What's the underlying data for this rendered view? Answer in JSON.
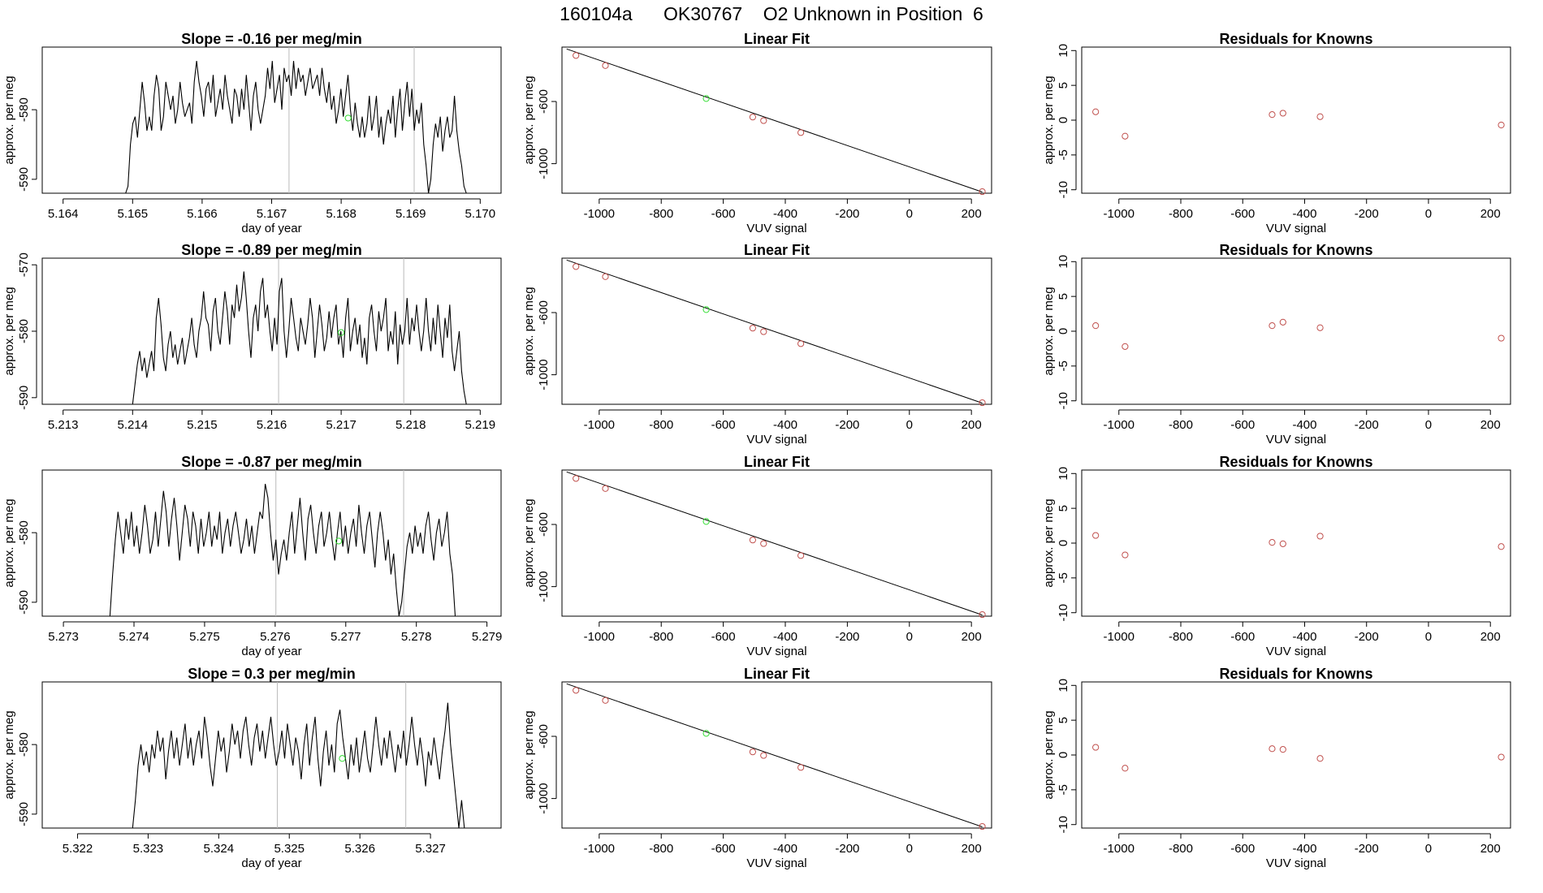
{
  "page": {
    "title": "160104a      OK30767    O2 Unknown in Position  6"
  },
  "colors": {
    "line": "#000000",
    "known_point": "#c0504d",
    "unknown_point": "#33dd33",
    "vline": "#bbbbbb"
  },
  "chart_data": [
    {
      "type": "line",
      "title": "Slope =  -0.16  per meg/min",
      "xlabel": "day of year",
      "ylabel": "approx. per meg",
      "xlim": [
        5.1637,
        5.1703
      ],
      "ylim": [
        -592,
        -571
      ],
      "xticks": [
        5.164,
        5.165,
        5.166,
        5.167,
        5.168,
        5.169,
        5.17
      ],
      "xtick_labels": [
        "5.164",
        "5.165",
        "5.166",
        "5.167",
        "5.168",
        "5.169",
        "5.170"
      ],
      "yticks": [
        -580,
        -590
      ],
      "ytick_labels": [
        "-580",
        "-590"
      ],
      "vlines": [
        5.16725,
        5.16905
      ],
      "x_start": 5.1649,
      "x_end": 5.1698,
      "unknown_point": {
        "x": 5.1681,
        "y": -581.2
      },
      "y": [
        -592,
        -591,
        -585,
        -582,
        -581,
        -584,
        -580,
        -576,
        -579,
        -583,
        -581,
        -583,
        -578,
        -575,
        -577,
        -583,
        -581,
        -576,
        -578,
        -580,
        -578,
        -582,
        -580,
        -576,
        -579,
        -581,
        -580,
        -579,
        -582,
        -576,
        -573,
        -576,
        -578,
        -581,
        -577,
        -576,
        -579,
        -575,
        -581,
        -579,
        -577,
        -580,
        -575,
        -578,
        -580,
        -582,
        -577,
        -578,
        -581,
        -577,
        -580,
        -575,
        -579,
        -583,
        -578,
        -576,
        -580,
        -582,
        -580,
        -578,
        -574,
        -577,
        -573,
        -579,
        -577,
        -575,
        -580,
        -574,
        -576,
        -575,
        -578,
        -573,
        -577,
        -574,
        -576,
        -575,
        -578,
        -576,
        -574,
        -577,
        -576,
        -575,
        -578,
        -574,
        -577,
        -579,
        -576,
        -580,
        -578,
        -582,
        -580,
        -577,
        -581,
        -578,
        -575,
        -580,
        -583,
        -579,
        -582,
        -584,
        -581,
        -584,
        -582,
        -578,
        -583,
        -581,
        -578,
        -584,
        -581,
        -585,
        -582,
        -580,
        -582,
        -578,
        -584,
        -580,
        -577,
        -583,
        -579,
        -576,
        -581,
        -577,
        -583,
        -580,
        -582,
        -579,
        -585,
        -588,
        -592,
        -590,
        -585,
        -582,
        -584,
        -581,
        -586,
        -583,
        -581,
        -584,
        -583,
        -578,
        -583,
        -586,
        -588,
        -591,
        -592
      ]
    },
    {
      "type": "scatter",
      "title": "Linear Fit",
      "xlabel": "VUV signal",
      "ylabel": "approx. per meg",
      "xlim": [
        -1120,
        265
      ],
      "ylim": [
        -1190,
        -250
      ],
      "xticks": [
        -1000,
        -800,
        -600,
        -400,
        -200,
        0,
        200
      ],
      "xtick_labels": [
        "-1000",
        "-800",
        "-600",
        "-400",
        "-200",
        "0",
        "200"
      ],
      "yticks": [
        -600,
        -1000
      ],
      "ytick_labels": [
        "-600",
        "-1000"
      ],
      "fit_line": {
        "x": [
          -1105,
          235
        ],
        "y": [
          -262,
          -1182
        ]
      },
      "known_points": {
        "x": [
          -1075,
          -980,
          -505,
          -470,
          -350,
          235
        ],
        "y": [
          -304,
          -369,
          -700,
          -723,
          -800,
          -1180
        ]
      },
      "unknown_point": {
        "x": -655,
        "y": -581
      }
    },
    {
      "type": "scatter",
      "title": "Residuals for Knowns",
      "xlabel": "VUV signal",
      "ylabel": "approx. per meg",
      "xlim": [
        -1120,
        265
      ],
      "ylim": [
        -10.5,
        10.5
      ],
      "xticks": [
        -1000,
        -800,
        -600,
        -400,
        -200,
        0,
        200
      ],
      "xtick_labels": [
        "-1000",
        "-800",
        "-600",
        "-400",
        "-200",
        "0",
        "200"
      ],
      "yticks": [
        10,
        5,
        0,
        -5,
        -10
      ],
      "ytick_labels": [
        "10",
        "5",
        "0",
        "-5",
        "-10"
      ],
      "points": {
        "x": [
          -1075,
          -980,
          -505,
          -470,
          -350,
          235
        ],
        "y": [
          1.2,
          -2.3,
          0.8,
          1.0,
          0.5,
          -0.7
        ]
      }
    },
    {
      "type": "line",
      "title": "Slope =  -0.89  per meg/min",
      "xlabel": "",
      "ylabel": "approx. per meg",
      "xlim": [
        5.2127,
        5.2193
      ],
      "ylim": [
        -591,
        -569
      ],
      "xticks": [
        5.213,
        5.214,
        5.215,
        5.216,
        5.217,
        5.218,
        5.219
      ],
      "xtick_labels": [
        "5.213",
        "5.214",
        "5.215",
        "5.216",
        "5.217",
        "5.218",
        "5.219"
      ],
      "yticks": [
        -570,
        -580,
        -590
      ],
      "ytick_labels": [
        "-570",
        "-580",
        "-590"
      ],
      "vlines": [
        5.2161,
        5.2179
      ],
      "x_start": 5.214,
      "x_end": 5.2188,
      "unknown_point": {
        "x": 5.217,
        "y": -580.2
      },
      "y": [
        -591,
        -588,
        -585,
        -583,
        -586,
        -584,
        -587,
        -585,
        -583,
        -586,
        -578,
        -575,
        -579,
        -584,
        -586,
        -582,
        -580,
        -584,
        -582,
        -585,
        -583,
        -581,
        -585,
        -583,
        -581,
        -578,
        -582,
        -584,
        -580,
        -578,
        -574,
        -578,
        -579,
        -583,
        -577,
        -575,
        -580,
        -582,
        -578,
        -574,
        -577,
        -582,
        -576,
        -578,
        -573,
        -577,
        -575,
        -571,
        -575,
        -580,
        -584,
        -578,
        -576,
        -580,
        -574,
        -572,
        -578,
        -576,
        -580,
        -583,
        -578,
        -582,
        -574,
        -572,
        -580,
        -584,
        -580,
        -575,
        -578,
        -581,
        -583,
        -578,
        -580,
        -582,
        -579,
        -575,
        -578,
        -584,
        -580,
        -576,
        -579,
        -583,
        -581,
        -577,
        -581,
        -578,
        -576,
        -582,
        -580,
        -584,
        -578,
        -575,
        -583,
        -580,
        -578,
        -582,
        -579,
        -584,
        -581,
        -585,
        -578,
        -576,
        -580,
        -583,
        -577,
        -580,
        -578,
        -575,
        -583,
        -580,
        -582,
        -577,
        -585,
        -579,
        -582,
        -580,
        -575,
        -582,
        -578,
        -580,
        -576,
        -580,
        -583,
        -580,
        -575,
        -580,
        -583,
        -578,
        -582,
        -576,
        -580,
        -584,
        -578,
        -581,
        -576,
        -583,
        -586,
        -583,
        -580,
        -586,
        -589,
        -591
      ]
    },
    {
      "type": "scatter",
      "title": "Linear Fit",
      "xlabel": "VUV signal",
      "ylabel": "approx. per meg",
      "xlim": [
        -1120,
        265
      ],
      "ylim": [
        -1190,
        -250
      ],
      "xticks": [
        -1000,
        -800,
        -600,
        -400,
        -200,
        0,
        200
      ],
      "xtick_labels": [
        "-1000",
        "-800",
        "-600",
        "-400",
        "-200",
        "0",
        "200"
      ],
      "yticks": [
        -600,
        -1000
      ],
      "ytick_labels": [
        "-600",
        "-1000"
      ],
      "fit_line": {
        "x": [
          -1105,
          235
        ],
        "y": [
          -262,
          -1182
        ]
      },
      "known_points": {
        "x": [
          -1075,
          -980,
          -505,
          -470,
          -350,
          235
        ],
        "y": [
          -304,
          -369,
          -700,
          -723,
          -800,
          -1180
        ]
      },
      "unknown_point": {
        "x": -655,
        "y": -581
      }
    },
    {
      "type": "scatter",
      "title": "Residuals for Knowns",
      "xlabel": "VUV signal",
      "ylabel": "approx. per meg",
      "xlim": [
        -1120,
        265
      ],
      "ylim": [
        -10.5,
        10.5
      ],
      "xticks": [
        -1000,
        -800,
        -600,
        -400,
        -200,
        0,
        200
      ],
      "xtick_labels": [
        "-1000",
        "-800",
        "-600",
        "-400",
        "-200",
        "0",
        "200"
      ],
      "yticks": [
        10,
        5,
        0,
        -5,
        -10
      ],
      "ytick_labels": [
        "10",
        "5",
        "0",
        "-5",
        "-10"
      ],
      "points": {
        "x": [
          -1075,
          -980,
          -505,
          -470,
          -350,
          235
        ],
        "y": [
          0.8,
          -2.2,
          0.8,
          1.3,
          0.5,
          -1.0
        ]
      }
    },
    {
      "type": "line",
      "title": "Slope =  -0.87  per meg/min",
      "xlabel": "day of year",
      "ylabel": "approx. per meg",
      "xlim": [
        5.2727,
        5.2792
      ],
      "ylim": [
        -592,
        -571
      ],
      "xticks": [
        5.273,
        5.274,
        5.275,
        5.276,
        5.277,
        5.278,
        5.279
      ],
      "xtick_labels": [
        "5.273",
        "5.274",
        "5.275",
        "5.276",
        "5.277",
        "5.278",
        "5.279"
      ],
      "yticks": [
        -580,
        -590
      ],
      "ytick_labels": [
        "-580",
        "-590"
      ],
      "vlines": [
        5.27601,
        5.27782
      ],
      "x_start": 5.27366,
      "x_end": 5.27855,
      "unknown_point": {
        "x": 5.2769,
        "y": -581.2
      },
      "y": [
        -592,
        -586,
        -581,
        -577,
        -580,
        -583,
        -578,
        -581,
        -577,
        -582,
        -579,
        -583,
        -580,
        -576,
        -579,
        -583,
        -581,
        -577,
        -582,
        -578,
        -574,
        -577,
        -582,
        -578,
        -575,
        -579,
        -584,
        -580,
        -576,
        -578,
        -582,
        -577,
        -579,
        -583,
        -578,
        -582,
        -580,
        -577,
        -582,
        -579,
        -581,
        -577,
        -583,
        -580,
        -578,
        -582,
        -579,
        -577,
        -580,
        -583,
        -581,
        -578,
        -582,
        -579,
        -583,
        -580,
        -577,
        -578,
        -573,
        -575,
        -580,
        -584,
        -581,
        -586,
        -583,
        -581,
        -584,
        -580,
        -577,
        -583,
        -579,
        -575,
        -580,
        -584,
        -578,
        -576,
        -580,
        -583,
        -579,
        -577,
        -582,
        -580,
        -577,
        -581,
        -584,
        -580,
        -577,
        -582,
        -579,
        -583,
        -580,
        -578,
        -582,
        -576,
        -580,
        -583,
        -579,
        -577,
        -581,
        -585,
        -580,
        -577,
        -580,
        -584,
        -581,
        -586,
        -583,
        -588,
        -592,
        -590,
        -586,
        -582,
        -580,
        -583,
        -579,
        -582,
        -580,
        -583,
        -579,
        -577,
        -581,
        -584,
        -580,
        -578,
        -582,
        -580,
        -577,
        -583,
        -586,
        -592
      ]
    },
    {
      "type": "scatter",
      "title": "Linear Fit",
      "xlabel": "VUV signal",
      "ylabel": "approx. per meg",
      "xlim": [
        -1120,
        265
      ],
      "ylim": [
        -1190,
        -250
      ],
      "xticks": [
        -1000,
        -800,
        -600,
        -400,
        -200,
        0,
        200
      ],
      "xtick_labels": [
        "-1000",
        "-800",
        "-600",
        "-400",
        "-200",
        "0",
        "200"
      ],
      "yticks": [
        -600,
        -1000
      ],
      "ytick_labels": [
        "-600",
        "-1000"
      ],
      "fit_line": {
        "x": [
          -1105,
          235
        ],
        "y": [
          -262,
          -1182
        ]
      },
      "known_points": {
        "x": [
          -1075,
          -980,
          -505,
          -470,
          -350,
          235
        ],
        "y": [
          -304,
          -369,
          -700,
          -723,
          -800,
          -1180
        ]
      },
      "unknown_point": {
        "x": -655,
        "y": -581
      }
    },
    {
      "type": "scatter",
      "title": "Residuals for Knowns",
      "xlabel": "VUV signal",
      "ylabel": "approx. per meg",
      "xlim": [
        -1120,
        265
      ],
      "ylim": [
        -10.5,
        10.5
      ],
      "xticks": [
        -1000,
        -800,
        -600,
        -400,
        -200,
        0,
        200
      ],
      "xtick_labels": [
        "-1000",
        "-800",
        "-600",
        "-400",
        "-200",
        "0",
        "200"
      ],
      "yticks": [
        10,
        5,
        0,
        -5,
        -10
      ],
      "ytick_labels": [
        "10",
        "5",
        "0",
        "-5",
        "-10"
      ],
      "points": {
        "x": [
          -1075,
          -980,
          -505,
          -470,
          -350,
          235
        ],
        "y": [
          1.1,
          -1.7,
          0.1,
          -0.1,
          1.0,
          -0.5
        ]
      }
    },
    {
      "type": "line",
      "title": "Slope =  0.3  per meg/min",
      "xlabel": "day of year",
      "ylabel": "approx. per meg",
      "xlim": [
        5.3215,
        5.328
      ],
      "ylim": [
        -592,
        -571
      ],
      "xticks": [
        5.322,
        5.323,
        5.324,
        5.325,
        5.326,
        5.327
      ],
      "xtick_labels": [
        "5.322",
        "5.323",
        "5.324",
        "5.325",
        "5.326",
        "5.327"
      ],
      "yticks": [
        -580,
        -590
      ],
      "ytick_labels": [
        "-580",
        "-590"
      ],
      "vlines": [
        5.32483,
        5.32665
      ],
      "x_start": 5.32278,
      "x_end": 5.32748,
      "unknown_point": {
        "x": 5.32575,
        "y": -582
      },
      "y": [
        -592,
        -588,
        -583,
        -580,
        -583,
        -581,
        -584,
        -580,
        -582,
        -578,
        -581,
        -579,
        -585,
        -581,
        -578,
        -582,
        -579,
        -583,
        -580,
        -577,
        -582,
        -579,
        -583,
        -580,
        -578,
        -582,
        -576,
        -579,
        -583,
        -586,
        -582,
        -578,
        -581,
        -579,
        -584,
        -581,
        -577,
        -580,
        -578,
        -582,
        -578,
        -576,
        -580,
        -583,
        -579,
        -577,
        -581,
        -578,
        -582,
        -579,
        -576,
        -580,
        -583,
        -581,
        -578,
        -582,
        -577,
        -580,
        -583,
        -579,
        -581,
        -585,
        -580,
        -577,
        -583,
        -579,
        -576,
        -582,
        -586,
        -581,
        -578,
        -583,
        -580,
        -584,
        -577,
        -575,
        -579,
        -582,
        -585,
        -580,
        -583,
        -579,
        -584,
        -581,
        -578,
        -582,
        -584,
        -580,
        -576,
        -580,
        -583,
        -579,
        -582,
        -578,
        -581,
        -584,
        -580,
        -582,
        -578,
        -583,
        -580,
        -576,
        -580,
        -583,
        -579,
        -582,
        -586,
        -581,
        -583,
        -579,
        -582,
        -585,
        -581,
        -578,
        -574,
        -580,
        -584,
        -588,
        -592,
        -588,
        -592
      ]
    },
    {
      "type": "scatter",
      "title": "Linear Fit",
      "xlabel": "VUV signal",
      "ylabel": "approx. per meg",
      "xlim": [
        -1120,
        265
      ],
      "ylim": [
        -1190,
        -250
      ],
      "xticks": [
        -1000,
        -800,
        -600,
        -400,
        -200,
        0,
        200
      ],
      "xtick_labels": [
        "-1000",
        "-800",
        "-600",
        "-400",
        "-200",
        "0",
        "200"
      ],
      "yticks": [
        -600,
        -1000
      ],
      "ytick_labels": [
        "-600",
        "-1000"
      ],
      "fit_line": {
        "x": [
          -1105,
          235
        ],
        "y": [
          -262,
          -1182
        ]
      },
      "known_points": {
        "x": [
          -1075,
          -980,
          -505,
          -470,
          -350,
          235
        ],
        "y": [
          -304,
          -369,
          -700,
          -723,
          -800,
          -1180
        ]
      },
      "unknown_point": {
        "x": -655,
        "y": -581
      }
    },
    {
      "type": "scatter",
      "title": "Residuals for Knowns",
      "xlabel": "VUV signal",
      "ylabel": "approx. per meg",
      "xlim": [
        -1120,
        265
      ],
      "ylim": [
        -10.5,
        10.5
      ],
      "xticks": [
        -1000,
        -800,
        -600,
        -400,
        -200,
        0,
        200
      ],
      "xtick_labels": [
        "-1000",
        "-800",
        "-600",
        "-400",
        "-200",
        "0",
        "200"
      ],
      "yticks": [
        10,
        5,
        0,
        -5,
        -10
      ],
      "ytick_labels": [
        "10",
        "5",
        "0",
        "-5",
        "-10"
      ],
      "points": {
        "x": [
          -1075,
          -980,
          -505,
          -470,
          -350,
          235
        ],
        "y": [
          1.1,
          -1.9,
          0.9,
          0.8,
          -0.5,
          -0.3
        ]
      }
    }
  ]
}
